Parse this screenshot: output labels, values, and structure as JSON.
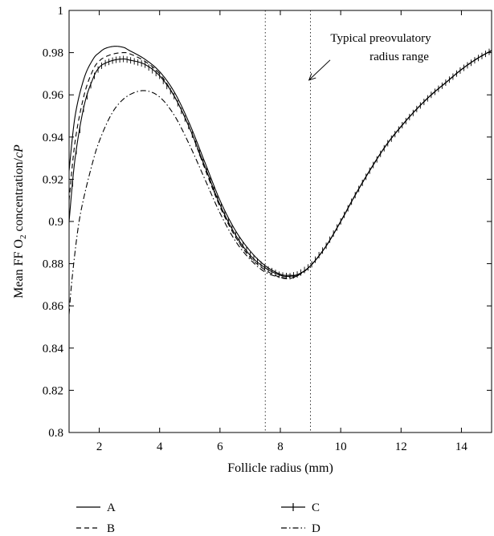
{
  "chart_data": {
    "type": "line",
    "title": "",
    "xlabel": "Follicle radius (mm)",
    "ylabel_main": "Mean FF O",
    "ylabel_sub": "2",
    "ylabel_tail": " concentration/",
    "ylabel_italic": "cP",
    "xlim": [
      1,
      15
    ],
    "ylim": [
      0.8,
      1.0
    ],
    "xticks": [
      2,
      4,
      6,
      8,
      10,
      12,
      14
    ],
    "yticks": [
      0.8,
      0.82,
      0.84,
      0.86,
      0.88,
      0.9,
      0.92,
      0.94,
      0.96,
      0.98,
      1
    ],
    "ytick_labels": [
      "0.8",
      "0.82",
      "0.84",
      "0.86",
      "0.88",
      "0.9",
      "0.92",
      "0.94",
      "0.96",
      "0.98",
      "1"
    ],
    "grid": false,
    "vlines": [
      7.5,
      9.0
    ],
    "annotation": {
      "line1": "Typical preovulatory",
      "line2": "radius range",
      "arrow_from": [
        9.65,
        0.9765
      ],
      "arrow_to": [
        8.95,
        0.967
      ]
    },
    "legend_position": "bottom",
    "series": [
      {
        "name": "A",
        "style": "solid",
        "x": [
          1.0,
          1.2,
          1.5,
          1.8,
          2.0,
          2.2,
          2.5,
          2.8,
          3.0,
          3.5,
          4.0,
          4.5,
          5.0,
          5.5,
          6.0,
          6.5,
          7.0,
          7.5,
          8.0,
          8.3,
          8.6,
          9.0,
          9.5,
          10.0,
          10.5,
          11.0,
          11.5,
          12.0,
          12.5,
          13.0,
          13.5,
          14.0,
          14.5,
          15.0
        ],
        "y": [
          0.924,
          0.95,
          0.968,
          0.977,
          0.98,
          0.982,
          0.983,
          0.9825,
          0.981,
          0.977,
          0.971,
          0.961,
          0.946,
          0.928,
          0.91,
          0.896,
          0.886,
          0.879,
          0.875,
          0.8745,
          0.875,
          0.879,
          0.888,
          0.9,
          0.913,
          0.925,
          0.936,
          0.945,
          0.953,
          0.96,
          0.966,
          0.972,
          0.977,
          0.981
        ]
      },
      {
        "name": "B",
        "style": "dashed",
        "x": [
          1.0,
          1.2,
          1.5,
          1.8,
          2.0,
          2.2,
          2.5,
          2.8,
          3.0,
          3.5,
          4.0,
          4.5,
          5.0,
          5.5,
          6.0,
          6.5,
          7.0,
          7.5,
          8.0,
          8.3,
          8.6,
          9.0,
          9.5,
          10.0,
          10.5,
          11.0,
          11.5,
          12.0,
          12.5,
          13.0,
          13.5,
          14.0,
          14.5,
          15.0
        ],
        "y": [
          0.91,
          0.938,
          0.96,
          0.972,
          0.976,
          0.978,
          0.9795,
          0.98,
          0.9795,
          0.976,
          0.97,
          0.959,
          0.944,
          0.925,
          0.907,
          0.893,
          0.883,
          0.877,
          0.8735,
          0.873,
          0.8745,
          0.879,
          0.888,
          0.9,
          0.913,
          0.925,
          0.936,
          0.945,
          0.953,
          0.96,
          0.966,
          0.972,
          0.977,
          0.981
        ]
      },
      {
        "name": "C",
        "style": "solid-plus",
        "x": [
          1.0,
          1.2,
          1.5,
          1.8,
          2.0,
          2.2,
          2.5,
          2.8,
          3.0,
          3.5,
          4.0,
          4.5,
          5.0,
          5.5,
          6.0,
          6.5,
          7.0,
          7.5,
          8.0,
          8.3,
          8.6,
          9.0,
          9.5,
          10.0,
          10.5,
          11.0,
          11.5,
          12.0,
          12.5,
          13.0,
          13.5,
          14.0,
          14.5,
          15.0
        ],
        "y": [
          0.9,
          0.93,
          0.955,
          0.968,
          0.973,
          0.975,
          0.9765,
          0.977,
          0.9765,
          0.9745,
          0.969,
          0.959,
          0.944,
          0.926,
          0.908,
          0.894,
          0.884,
          0.878,
          0.8745,
          0.874,
          0.875,
          0.879,
          0.888,
          0.9,
          0.913,
          0.925,
          0.936,
          0.945,
          0.953,
          0.96,
          0.966,
          0.972,
          0.977,
          0.981
        ]
      },
      {
        "name": "D",
        "style": "dashdot",
        "x": [
          1.0,
          1.1,
          1.3,
          1.5,
          1.8,
          2.0,
          2.3,
          2.6,
          3.0,
          3.5,
          4.0,
          4.5,
          5.0,
          5.5,
          6.0,
          6.5,
          7.0,
          7.5,
          8.0,
          8.3,
          8.6,
          9.0,
          9.5,
          10.0,
          10.5,
          11.0,
          11.5,
          12.0,
          12.5,
          13.0,
          13.5,
          14.0,
          14.5,
          15.0
        ],
        "y": [
          0.856,
          0.873,
          0.897,
          0.912,
          0.929,
          0.938,
          0.948,
          0.955,
          0.96,
          0.962,
          0.959,
          0.95,
          0.936,
          0.92,
          0.904,
          0.891,
          0.882,
          0.876,
          0.8735,
          0.8735,
          0.8745,
          0.879,
          0.888,
          0.9,
          0.913,
          0.925,
          0.936,
          0.945,
          0.953,
          0.96,
          0.966,
          0.972,
          0.977,
          0.981
        ]
      }
    ]
  }
}
